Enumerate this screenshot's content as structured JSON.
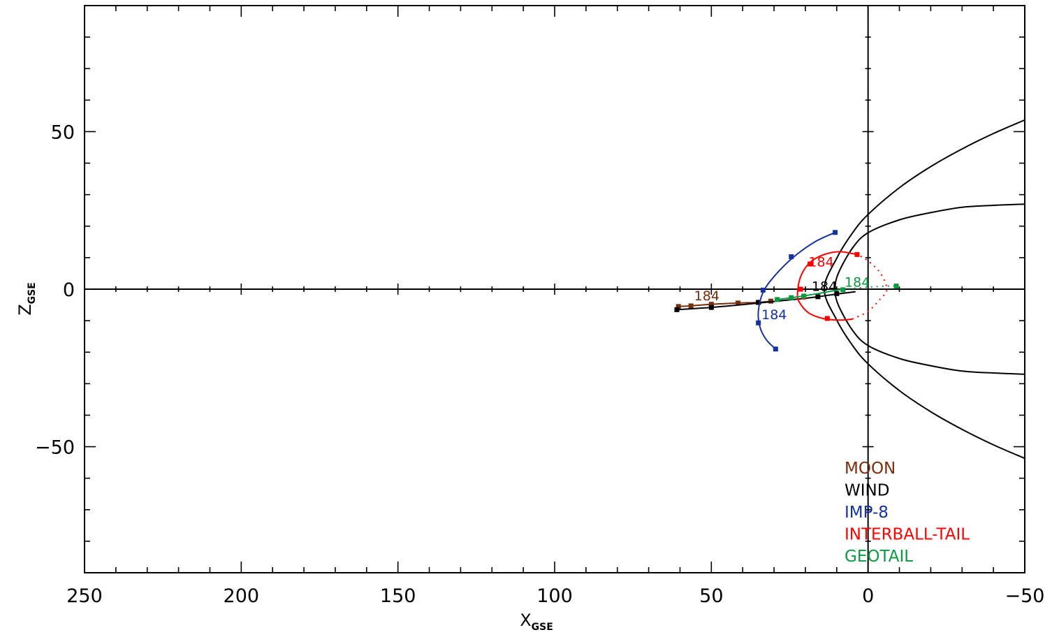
{
  "chart_data": {
    "type": "line",
    "xlabel": "X",
    "xlabel_sub": "GSE",
    "ylabel": "Z",
    "ylabel_sub": "GSE",
    "xlim": [
      250,
      -50
    ],
    "ylim": [
      -90,
      90
    ],
    "x_ticks": [
      250,
      200,
      150,
      100,
      50,
      0,
      -50
    ],
    "x_tick_labels": [
      "250",
      "200",
      "150",
      "100",
      "50",
      "0",
      "−50"
    ],
    "y_ticks": [
      50,
      0,
      -50
    ],
    "y_tick_labels": [
      "50",
      "0",
      "−50"
    ],
    "grid": false,
    "legend_position": "bottom-right",
    "colors": {
      "moon": "#7a2e0c",
      "wind": "#000000",
      "imp8": "#1633a0",
      "interball": "#ff0000",
      "geotail": "#0a9a40",
      "axes": "#000000"
    },
    "series": [
      {
        "name": "MOON",
        "color": "#7a2e0c",
        "x": [
          60.5,
          56.5,
          50,
          41.5,
          35,
          31
        ],
        "y": [
          -5.5,
          -5.3,
          -4.8,
          -4.4,
          -4.2,
          -3.8
        ],
        "marker_label": "184",
        "marker_label_x": 55.5,
        "marker_label_y": -3.5
      },
      {
        "name": "WIND",
        "color": "#000000",
        "x": [
          61,
          50,
          40,
          30,
          21,
          16,
          11,
          4
        ],
        "y": [
          -6.5,
          -5.8,
          -4.9,
          -3.9,
          -3.0,
          -2.4,
          -1.7,
          -0.8
        ],
        "markers_x": [
          61,
          50,
          35,
          16,
          10
        ],
        "markers_y": [
          -6.5,
          -5.8,
          -4.2,
          -2.4,
          -1.4
        ],
        "marker_label": "184",
        "marker_label_x": 18,
        "marker_label_y": -0.5
      },
      {
        "name": "IMP-8",
        "color": "#1633a0",
        "x": [
          10.5,
          17,
          24,
          30,
          33.5,
          35,
          34.5,
          32.5,
          29.5
        ],
        "y": [
          18,
          15,
          10,
          4,
          -1,
          -7,
          -12,
          -16,
          -19
        ],
        "markers_x": [
          10.5,
          24.5,
          33.5,
          35,
          29.5
        ],
        "markers_y": [
          18,
          10.3,
          -0.3,
          -10.7,
          -19
        ],
        "marker_label": "184",
        "marker_label_x": 34,
        "marker_label_y": -9.5
      },
      {
        "name": "INTERBALL-TAIL",
        "color": "#ff0000",
        "x": [
          3.5,
          9,
          14,
          18.5,
          21.5,
          22.5,
          22,
          19,
          14,
          9,
          5
        ],
        "y": [
          11,
          11.9,
          11,
          8.5,
          4,
          -1.2,
          -4,
          -7.5,
          -9.4,
          -9.8,
          -9.5
        ],
        "markers_x": [
          3.5,
          18.5,
          21.5,
          20.5,
          13
        ],
        "markers_y": [
          11,
          8,
          0,
          -2.5,
          -9.3
        ],
        "dotted_x": [
          5,
          0,
          -4,
          -6,
          -4,
          0,
          3.5
        ],
        "dotted_y": [
          -9.5,
          -7,
          -3,
          0,
          5,
          9,
          11
        ],
        "marker_label": "184",
        "marker_label_x": 19,
        "marker_label_y": 7.2
      },
      {
        "name": "GEOTAIL",
        "color": "#0a9a40",
        "x": [
          29,
          25,
          21,
          16,
          11,
          8
        ],
        "y": [
          -3.3,
          -2.8,
          -2.2,
          -1.4,
          -0.5,
          0
        ],
        "markers_x": [
          29,
          24.5,
          20.5,
          8
        ],
        "markers_y": [
          -3.3,
          -2.7,
          -2.2,
          -0.2
        ],
        "dotted_x": [
          8,
          2,
          -3,
          -7,
          -9
        ],
        "dotted_y": [
          0,
          0.5,
          0.8,
          1,
          1
        ],
        "end_marker_x": -9,
        "end_marker_y": 1,
        "marker_label": "184",
        "marker_label_x": 7.5,
        "marker_label_y": 0.8
      }
    ],
    "boundaries": [
      {
        "name": "bow shock",
        "x": [
          -50,
          -40,
          -30,
          -20,
          -10,
          0,
          5,
          10,
          14,
          10,
          5,
          0,
          -10,
          -20,
          -30,
          -40,
          -50
        ],
        "y": [
          53.7,
          49.4,
          44.5,
          38.9,
          32.2,
          23.7,
          17.8,
          9.8,
          0,
          -9.8,
          -17.8,
          -23.7,
          -32.2,
          -38.9,
          -44.5,
          -49.4,
          -53.7
        ]
      },
      {
        "name": "magnetopause",
        "x": [
          -50,
          -40,
          -30,
          -20,
          -10,
          0,
          5,
          9.5,
          10.5,
          9.5,
          5,
          0,
          -10,
          -20,
          -30,
          -40,
          -50
        ],
        "y": [
          27,
          26.6,
          26,
          24.3,
          22,
          17.9,
          13,
          5,
          0,
          -5,
          -13,
          -17.9,
          -22,
          -24.3,
          -26,
          -26.6,
          -27
        ]
      }
    ],
    "legend": [
      "MOON",
      "WIND",
      "IMP-8",
      "INTERBALL-TAIL",
      "GEOTAIL"
    ]
  }
}
